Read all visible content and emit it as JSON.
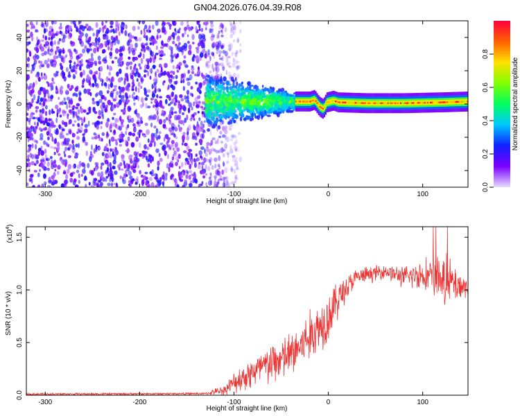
{
  "figure": {
    "title": "GN04.2026.076.04.39.R08"
  },
  "chart_data": [
    {
      "id": "spectrogram",
      "type": "heatmap",
      "title": "GN04.2026.076.04.39.R08",
      "xlabel": "Height of straight line (km)",
      "ylabel": "Frequency (Hz)",
      "xlim": [
        -320,
        148
      ],
      "ylim": [
        -50,
        50
      ],
      "xticks": [
        -300,
        -200,
        -100,
        0,
        100
      ],
      "yticks": [
        -40,
        -20,
        0,
        20,
        40
      ],
      "grid": false,
      "regions": [
        {
          "name": "noise",
          "x_range": [
            -320,
            -108
          ],
          "freq_range": [
            -50,
            50
          ],
          "amplitude_range": [
            0.05,
            0.25
          ]
        },
        {
          "name": "transition",
          "x_range": [
            -130,
            -35
          ],
          "freq_range": [
            -20,
            20
          ],
          "amplitude_range": [
            0.2,
            0.6
          ]
        },
        {
          "name": "signal",
          "x_range": [
            -35,
            148
          ],
          "center_freq": 0,
          "amplitude_range": [
            0.6,
            1.0
          ]
        }
      ],
      "signal_line": [
        {
          "x": -30,
          "f": 1.5
        },
        {
          "x": -20,
          "f": 1.5
        },
        {
          "x": -15,
          "f": 2.5
        },
        {
          "x": -10,
          "f": -1.5
        },
        {
          "x": -6,
          "f": -3
        },
        {
          "x": -2,
          "f": 1
        },
        {
          "x": 5,
          "f": 2
        },
        {
          "x": 10,
          "f": 1
        },
        {
          "x": 40,
          "f": 0.5
        },
        {
          "x": 80,
          "f": 0.5
        },
        {
          "x": 120,
          "f": 1
        },
        {
          "x": 148,
          "f": 1.5
        }
      ],
      "colorbar": {
        "label": "Normalized spectral amplitude",
        "range": [
          0,
          1
        ],
        "ticks": [
          0.0,
          0.2,
          0.4,
          0.6,
          0.8
        ],
        "tick_labels": [
          "0.0",
          "0.2",
          "0.4",
          "0.6",
          "0.8"
        ],
        "colormap": "rainbow",
        "colors": [
          "#e8dcff",
          "#7a00ff",
          "#1020ff",
          "#00c8ff",
          "#00ff60",
          "#80ff00",
          "#ffe000",
          "#ff6000",
          "#ff0040"
        ]
      }
    },
    {
      "id": "snr",
      "type": "line",
      "xlabel": "Height of straight line (km)",
      "ylabel": "SNR (10 * v/v)",
      "y_multiplier_label": "(x10",
      "y_multiplier_exp": "4",
      "y_multiplier_close": ")",
      "xlim": [
        -320,
        148
      ],
      "ylim": [
        0,
        1.6
      ],
      "xticks": [
        -300,
        -200,
        -100,
        0,
        100
      ],
      "yticks": [
        0.0,
        0.5,
        1.0,
        1.5
      ],
      "ytick_labels": [
        "0.0",
        "0.5",
        "1.0",
        "1.5"
      ],
      "series": [
        {
          "name": "SNR",
          "color": "#ee3333",
          "envelope": [
            {
              "x": -320,
              "mean": 0.01,
              "spread": 0.01
            },
            {
              "x": -130,
              "mean": 0.015,
              "spread": 0.01
            },
            {
              "x": -110,
              "mean": 0.05,
              "spread": 0.05
            },
            {
              "x": -95,
              "mean": 0.15,
              "spread": 0.12
            },
            {
              "x": -80,
              "mean": 0.22,
              "spread": 0.16
            },
            {
              "x": -60,
              "mean": 0.3,
              "spread": 0.2
            },
            {
              "x": -40,
              "mean": 0.38,
              "spread": 0.22
            },
            {
              "x": -20,
              "mean": 0.55,
              "spread": 0.25
            },
            {
              "x": 0,
              "mean": 0.75,
              "spread": 0.25
            },
            {
              "x": 15,
              "mean": 0.98,
              "spread": 0.15
            },
            {
              "x": 30,
              "mean": 1.12,
              "spread": 0.08
            },
            {
              "x": 60,
              "mean": 1.18,
              "spread": 0.07
            },
            {
              "x": 80,
              "mean": 1.12,
              "spread": 0.1
            },
            {
              "x": 100,
              "mean": 1.15,
              "spread": 0.15
            },
            {
              "x": 125,
              "mean": 1.08,
              "spread": 0.25
            },
            {
              "x": 148,
              "mean": 1.02,
              "spread": 0.1
            }
          ],
          "peak": 1.6
        }
      ]
    }
  ]
}
